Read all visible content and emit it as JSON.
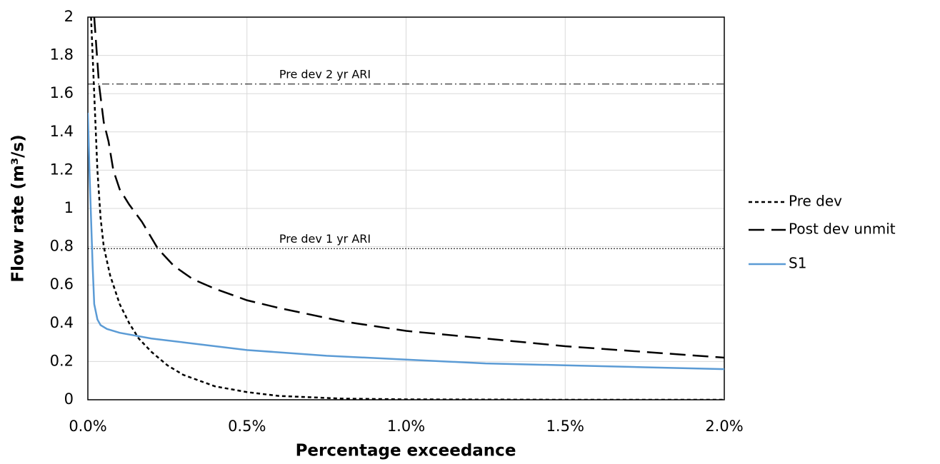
{
  "chart_data": {
    "type": "line",
    "x_label": "Percentage exceedance",
    "y_label": "Flow rate (m³/s)",
    "xlim": [
      0,
      2
    ],
    "xticks": [
      {
        "value": 0,
        "label": "0.0%"
      },
      {
        "value": 0.5,
        "label": "0.5%"
      },
      {
        "value": 1,
        "label": "1.0%"
      },
      {
        "value": 1.5,
        "label": "1.5%"
      },
      {
        "value": 2,
        "label": "2.0%"
      }
    ],
    "ylim": [
      0,
      2
    ],
    "yticks": [
      0,
      0.2,
      0.4,
      0.6,
      0.8,
      1,
      1.2,
      1.4,
      1.6,
      1.8,
      2
    ],
    "grid": true,
    "legend": "right",
    "reference_lines": [
      {
        "label": "Pre dev 2 yr ARI",
        "value": 1.65,
        "color": "#000000",
        "dash": "dashdot"
      },
      {
        "label": "Pre dev 1 yr ARI",
        "value": 0.79,
        "color": "#000000",
        "dash": "dotted"
      }
    ],
    "series": [
      {
        "name": "Pre dev",
        "color": "#000000",
        "dash": "short",
        "x": [
          0.01,
          0.02,
          0.03,
          0.04,
          0.05,
          0.07,
          0.1,
          0.13,
          0.16,
          0.2,
          0.25,
          0.3,
          0.4,
          0.5,
          0.6,
          0.8,
          1.0,
          1.5,
          2.0
        ],
        "values": [
          2.0,
          1.6,
          1.2,
          0.95,
          0.8,
          0.65,
          0.5,
          0.4,
          0.32,
          0.25,
          0.18,
          0.13,
          0.07,
          0.04,
          0.02,
          0.006,
          0.002,
          0,
          0
        ]
      },
      {
        "name": "Post dev unmit",
        "color": "#000000",
        "dash": "long",
        "x": [
          0.02,
          0.035,
          0.05,
          0.065,
          0.08,
          0.1,
          0.13,
          0.17,
          0.22,
          0.27,
          0.33,
          0.4,
          0.5,
          0.6,
          0.8,
          1.0,
          1.25,
          1.5,
          1.75,
          2.0
        ],
        "values": [
          2.0,
          1.65,
          1.45,
          1.35,
          1.2,
          1.1,
          1.02,
          0.93,
          0.79,
          0.7,
          0.63,
          0.58,
          0.52,
          0.48,
          0.41,
          0.36,
          0.32,
          0.28,
          0.25,
          0.22
        ]
      },
      {
        "name": "S1",
        "color": "#5b9bd5",
        "dash": "solid",
        "x": [
          0,
          0.005,
          0.01,
          0.015,
          0.02,
          0.03,
          0.04,
          0.06,
          0.1,
          0.2,
          0.3,
          0.5,
          0.75,
          1.0,
          1.25,
          1.5,
          1.75,
          2.0
        ],
        "values": [
          1.5,
          1.2,
          0.95,
          0.7,
          0.5,
          0.42,
          0.39,
          0.37,
          0.35,
          0.32,
          0.3,
          0.26,
          0.23,
          0.21,
          0.19,
          0.18,
          0.17,
          0.16
        ]
      }
    ]
  }
}
